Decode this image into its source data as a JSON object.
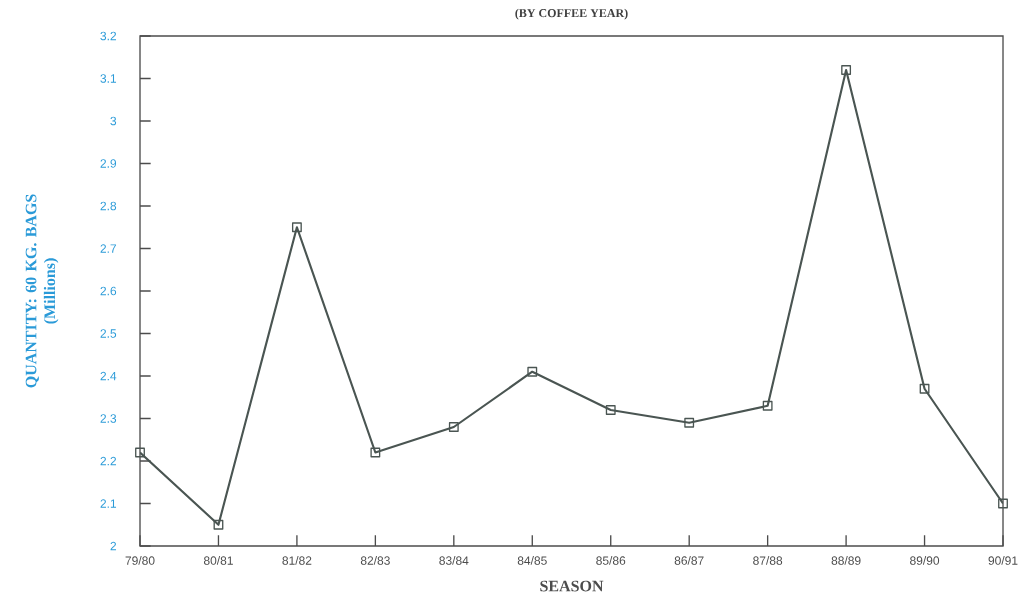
{
  "chart_data": {
    "type": "line",
    "title": "(BY COFFEE YEAR)",
    "xlabel": "SEASON",
    "ylabel": "QUANTITY: 60 KG. BAGS\n(Millions)",
    "categories": [
      "79/80",
      "80/81",
      "81/82",
      "82/83",
      "83/84",
      "84/85",
      "85/86",
      "86/87",
      "87/88",
      "88/89",
      "89/90",
      "90/91"
    ],
    "series": [
      {
        "color": "#4a5552",
        "values": [
          2.22,
          2.05,
          2.75,
          2.22,
          2.28,
          2.41,
          2.32,
          2.29,
          2.33,
          3.12,
          2.37,
          2.1
        ]
      }
    ],
    "ylim": [
      2,
      3.2
    ],
    "yticks": [
      2,
      2.1,
      2.2,
      2.3,
      2.4,
      2.5,
      2.6,
      2.7,
      2.8,
      2.9,
      3,
      3.1,
      3.2
    ],
    "marker": "square",
    "line_style": "solid",
    "grid": false
  }
}
